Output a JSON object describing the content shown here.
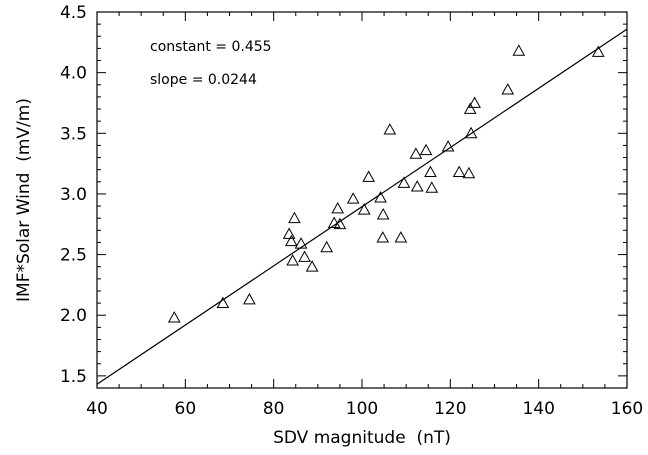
{
  "chart_data": {
    "type": "scatter",
    "xlabel": "SDV magnitude  (nT)",
    "ylabel": "IMF*Solar Wind  (mV/m)",
    "xlim": [
      40,
      160
    ],
    "ylim": [
      1.4,
      4.5
    ],
    "x_ticks": [
      40,
      60,
      80,
      100,
      120,
      140,
      160
    ],
    "y_ticks": [
      1.5,
      2.0,
      2.5,
      3.0,
      3.5,
      4.0,
      4.5
    ],
    "x_tick_labels": [
      "40",
      "60",
      "80",
      "100",
      "120",
      "140",
      "160"
    ],
    "y_tick_labels": [
      "1.5",
      "2.0",
      "2.5",
      "3.0",
      "3.5",
      "4.0",
      "4.5"
    ],
    "annotations": [
      "constant = 0.455",
      "slope = 0.0244"
    ],
    "fit": {
      "constant": 0.455,
      "slope": 0.0244
    },
    "marker": "triangle",
    "grid": false,
    "points": [
      [
        57.5,
        1.98
      ],
      [
        68.5,
        2.1
      ],
      [
        74.5,
        2.13
      ],
      [
        83.5,
        2.67
      ],
      [
        84.0,
        2.61
      ],
      [
        84.3,
        2.45
      ],
      [
        84.7,
        2.8
      ],
      [
        86.2,
        2.59
      ],
      [
        87.0,
        2.48
      ],
      [
        88.7,
        2.4
      ],
      [
        92.0,
        2.56
      ],
      [
        93.7,
        2.76
      ],
      [
        94.5,
        2.88
      ],
      [
        95.0,
        2.75
      ],
      [
        98.0,
        2.96
      ],
      [
        100.5,
        2.87
      ],
      [
        101.5,
        3.14
      ],
      [
        104.2,
        2.97
      ],
      [
        104.8,
        2.83
      ],
      [
        104.7,
        2.64
      ],
      [
        106.3,
        3.53
      ],
      [
        108.8,
        2.64
      ],
      [
        109.5,
        3.09
      ],
      [
        112.2,
        3.33
      ],
      [
        112.5,
        3.06
      ],
      [
        114.5,
        3.36
      ],
      [
        115.5,
        3.18
      ],
      [
        115.8,
        3.05
      ],
      [
        119.5,
        3.39
      ],
      [
        122.0,
        3.18
      ],
      [
        124.2,
        3.17
      ],
      [
        124.5,
        3.7
      ],
      [
        124.7,
        3.5
      ],
      [
        125.5,
        3.75
      ],
      [
        133.0,
        3.86
      ],
      [
        135.5,
        4.18
      ],
      [
        153.5,
        4.17
      ]
    ]
  }
}
